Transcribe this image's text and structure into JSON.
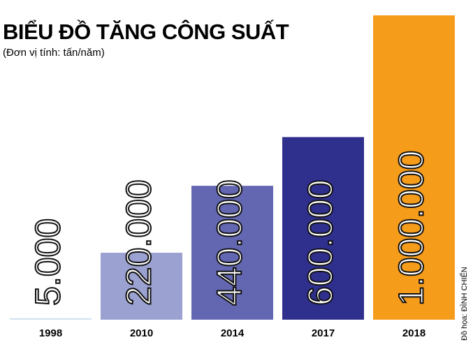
{
  "chart_data": {
    "type": "bar",
    "title": "BIỂU ĐỒ TĂNG CÔNG SUẤT",
    "subtitle": "(Đơn vị tính: tấn/năm)",
    "categories": [
      "1998",
      "2010",
      "2014",
      "2017",
      "2018"
    ],
    "values": [
      5000,
      220000,
      440000,
      600000,
      1000000
    ],
    "value_labels": [
      "5.000",
      "220.000",
      "440.000",
      "600.000",
      "1.000.000"
    ],
    "colors": [
      "#d3e2f1",
      "#9ba1d1",
      "#6367b2",
      "#2f2f8e",
      "#f59c1b"
    ],
    "credit": "Đồ họa: ĐÌNH CHIẾN"
  }
}
